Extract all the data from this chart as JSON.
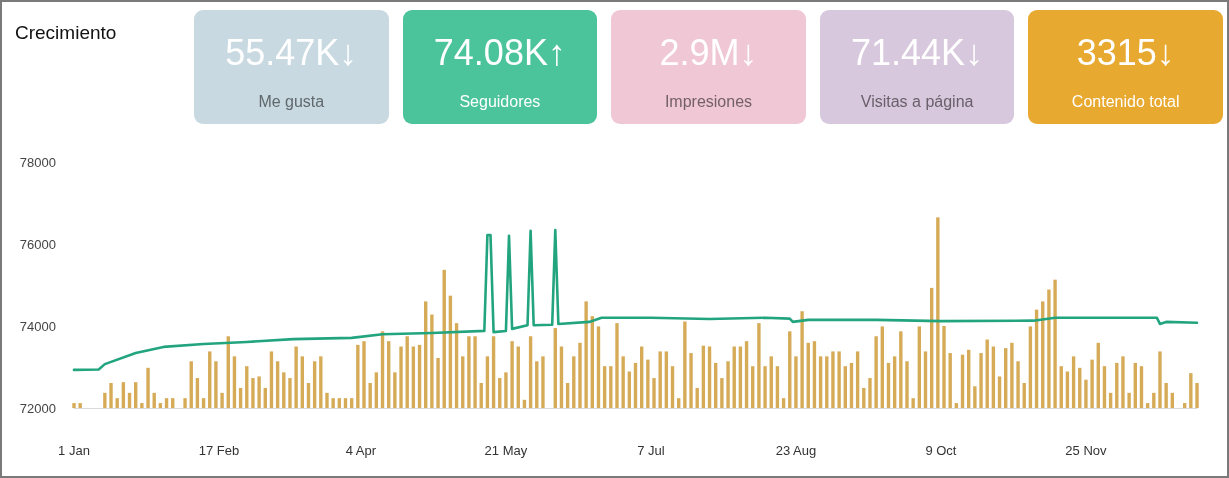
{
  "chart_data": [
    {
      "type": "bar",
      "title": "Crecimiento",
      "series": [
        {
          "type": "bar",
          "color": "#d6ab58",
          "x": [
            "--01-01",
            "--01-03",
            "--01-11",
            "--01-13",
            "--01-15",
            "--01-17",
            "--01-19",
            "--01-21",
            "--01-23",
            "--01-25",
            "--01-27",
            "--01-29",
            "--01-31",
            "--02-02",
            "--02-06",
            "--02-08",
            "--02-10",
            "--02-12",
            "--02-14",
            "--02-16",
            "--02-18",
            "--02-20",
            "--02-22",
            "--02-24",
            "--02-26",
            "--02-28",
            "--03-02",
            "--03-04",
            "--03-06",
            "--03-08",
            "--03-10",
            "--03-12",
            "--03-14",
            "--03-16",
            "--03-18",
            "--03-20",
            "--03-22",
            "--03-24",
            "--03-26",
            "--03-28",
            "--03-30",
            "--04-01",
            "--04-03",
            "--04-05",
            "--04-07",
            "--04-09",
            "--04-11",
            "--04-13",
            "--04-15",
            "--04-17",
            "--04-19",
            "--04-21",
            "--04-23",
            "--04-25",
            "--04-27",
            "--04-29",
            "--05-01",
            "--05-03",
            "--05-05",
            "--05-07",
            "--05-09",
            "--05-11",
            "--05-13",
            "--05-15",
            "--05-17",
            "--05-19",
            "--05-21",
            "--05-23",
            "--05-25",
            "--05-27",
            "--05-29",
            "--05-31",
            "--06-02",
            "--06-06",
            "--06-08",
            "--06-10",
            "--06-12",
            "--06-14",
            "--06-16",
            "--06-18",
            "--06-20",
            "--06-22",
            "--06-24",
            "--06-26",
            "--06-28",
            "--06-30",
            "--07-02",
            "--07-04",
            "--07-06",
            "--07-08",
            "--07-10",
            "--07-12",
            "--07-14",
            "--07-16",
            "--07-18",
            "--07-20",
            "--07-22",
            "--07-24",
            "--07-26",
            "--07-28",
            "--07-30",
            "--08-01",
            "--08-03",
            "--08-05",
            "--08-07",
            "--08-09",
            "--08-11",
            "--08-13",
            "--08-15",
            "--08-17",
            "--08-19",
            "--08-21",
            "--08-23",
            "--08-25",
            "--08-27",
            "--08-29",
            "--08-31",
            "--09-02",
            "--09-04",
            "--09-06",
            "--09-08",
            "--09-10",
            "--09-12",
            "--09-14",
            "--09-16",
            "--09-18",
            "--09-20",
            "--09-22",
            "--09-24",
            "--09-26",
            "--09-28",
            "--09-30",
            "--10-02",
            "--10-04",
            "--10-06",
            "--10-08",
            "--10-10",
            "--10-12",
            "--10-14",
            "--10-16",
            "--10-18",
            "--10-20",
            "--10-22",
            "--10-24",
            "--10-26",
            "--10-28",
            "--10-30",
            "--11-01",
            "--11-03",
            "--11-05",
            "--11-07",
            "--11-09",
            "--11-11",
            "--11-13",
            "--11-15",
            "--11-17",
            "--11-19",
            "--11-21",
            "--11-23",
            "--11-25",
            "--11-27",
            "--11-29",
            "--12-01",
            "--12-03",
            "--12-05",
            "--12-07",
            "--12-09",
            "--12-11",
            "--12-13",
            "--12-15",
            "--12-17",
            "--12-19",
            "--12-21",
            "--12-23",
            "--12-27",
            "--12-29",
            "--12-31"
          ],
          "values": [
            72120,
            72120,
            72370,
            72610,
            72240,
            72630,
            72370,
            72630,
            72120,
            72980,
            72370,
            72120,
            72240,
            72240,
            72240,
            73140,
            72730,
            72240,
            73380,
            73140,
            72370,
            73750,
            73260,
            72490,
            73020,
            72730,
            72770,
            72490,
            73380,
            73140,
            72870,
            72730,
            73500,
            73260,
            72610,
            73140,
            73260,
            72370,
            72240,
            72240,
            72240,
            72240,
            73540,
            73630,
            72610,
            72870,
            73870,
            73630,
            72870,
            73500,
            73750,
            73500,
            73540,
            74600,
            74280,
            73220,
            75370,
            74740,
            74070,
            73260,
            73750,
            73750,
            72610,
            73260,
            73750,
            72730,
            72870,
            73630,
            73500,
            72200,
            73750,
            73140,
            73260,
            73950,
            73500,
            72610,
            73260,
            73590,
            74600,
            74240,
            73990,
            73020,
            73020,
            74070,
            73260,
            72890,
            73100,
            73500,
            73180,
            72730,
            73380,
            73380,
            73020,
            72240,
            74110,
            73340,
            72490,
            73520,
            73500,
            73100,
            72730,
            73140,
            73500,
            73500,
            73630,
            73020,
            74070,
            73020,
            73260,
            73020,
            72240,
            73870,
            73260,
            74360,
            73590,
            73630,
            73260,
            73260,
            73380,
            73380,
            73020,
            73100,
            73380,
            72490,
            72730,
            73750,
            73990,
            73100,
            73260,
            73870,
            73140,
            72240,
            73990,
            73380,
            74930,
            76650,
            74000,
            73340,
            72120,
            73300,
            73420,
            72530,
            73340,
            73670,
            73500,
            72770,
            73460,
            73590,
            73140,
            72610,
            73990,
            74400,
            74600,
            74890,
            75130,
            73020,
            72890,
            73260,
            72980,
            72690,
            73180,
            73590,
            73020,
            72370,
            73100,
            73260,
            72370,
            73100,
            73020,
            72120,
            72370,
            73380,
            72610,
            72370,
            72120,
            72850,
            72610
          ]
        },
        {
          "type": "line",
          "color": "#22a47f",
          "x": [
            "--01-01",
            "--01-09",
            "--01-11",
            "--01-21",
            "--01-30",
            "--02-12",
            "--02-26",
            "--03-13",
            "--04-01",
            "--04-11",
            "--04-27",
            "--05-14",
            "--05-15",
            "--05-16",
            "--05-17",
            "--05-21",
            "--05-22",
            "--05-23",
            "--05-28",
            "--05-29",
            "--05-30",
            "--06-05",
            "--06-06",
            "--06-07",
            "--06-17",
            "--06-21",
            "--07-07",
            "--07-26",
            "--08-13",
            "--08-21",
            "--08-22",
            "--08-27",
            "--09-18",
            "--10-09",
            "--11-08",
            "--11-15",
            "--12-18",
            "--12-19",
            "--12-21",
            "--12-31"
          ],
          "values": [
            72930,
            72940,
            73070,
            73340,
            73490,
            73560,
            73610,
            73680,
            73710,
            73800,
            73830,
            73880,
            76220,
            76220,
            73850,
            73880,
            76200,
            73930,
            74020,
            76320,
            74020,
            74030,
            76340,
            74050,
            74100,
            74200,
            74200,
            74170,
            74200,
            74180,
            74100,
            74150,
            74150,
            74120,
            74130,
            74200,
            74200,
            74050,
            74100,
            74080
          ]
        }
      ],
      "xlim": [
        "--01-01",
        "--12-31"
      ],
      "xticks": [
        {
          "value": "--01-01",
          "label": "1 Jan"
        },
        {
          "value": "--02-17",
          "label": "17 Feb"
        },
        {
          "value": "--04-04",
          "label": "4 Apr"
        },
        {
          "value": "--05-21",
          "label": "21 May"
        },
        {
          "value": "--07-07",
          "label": "7 Jul"
        },
        {
          "value": "--08-23",
          "label": "23 Aug"
        },
        {
          "value": "--10-09",
          "label": "9 Oct"
        },
        {
          "value": "--11-25",
          "label": "25 Nov"
        }
      ],
      "ylim": [
        72000,
        78000
      ],
      "yticks": [
        72000,
        74000,
        76000,
        78000
      ]
    },
    {
      "type": "other",
      "annotations": [
        "55.47K↓",
        "Me gusta",
        "74.08K↑",
        "Seguidores",
        "2.9M↓",
        "Impresiones",
        "71.44K↓",
        "Visitas a página",
        "3315↓",
        "Contenido total"
      ],
      "colors": [
        "#c8d9e1",
        "#4cc49b",
        "#f0c8d5",
        "#d8c8dd",
        "#e8a930"
      ]
    }
  ]
}
